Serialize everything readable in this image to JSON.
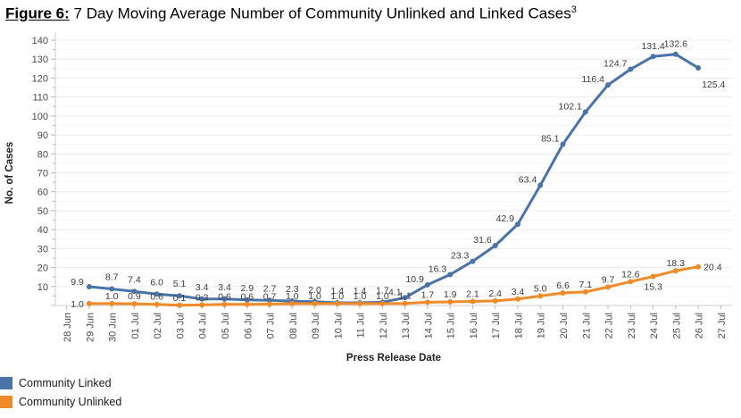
{
  "title": {
    "prefix": "Figure 6:",
    "text": " 7 Day Moving Average Number of Community Unlinked and Linked Cases",
    "superscript": "3"
  },
  "chart_data": {
    "type": "line",
    "title": "Figure 6: 7 Day Moving Average Number of Community Unlinked and Linked Cases",
    "xlabel": "Press Release Date",
    "ylabel": "No. of Cases",
    "ylim": [
      0,
      140
    ],
    "y_tick_step": 10,
    "y_minor_step": 5,
    "grid": true,
    "legend_position": "bottom-left",
    "categories": [
      "28 Jun",
      "29 Jun",
      "30 Jun",
      "01 Jul",
      "02 Jul",
      "03 Jul",
      "04 Jul",
      "05 Jul",
      "06 Jul",
      "07 Jul",
      "08 Jul",
      "09 Jul",
      "10 Jul",
      "11 Jul",
      "12 Jul",
      "13 Jul",
      "14 Jul",
      "15 Jul",
      "16 Jul",
      "17 Jul",
      "18 Jul",
      "19 Jul",
      "20 Jul",
      "21 Jul",
      "22 Jul",
      "23 Jul",
      "24 Jul",
      "25 Jul",
      "26 Jul",
      "27 Jul"
    ],
    "series": [
      {
        "name": "Community Linked",
        "color": "#4a73a8",
        "values": [
          null,
          9.9,
          8.7,
          7.4,
          6.0,
          5.1,
          3.4,
          3.4,
          2.9,
          2.7,
          2.3,
          2.0,
          1.4,
          1.4,
          1.7,
          4.1,
          10.9,
          16.3,
          23.3,
          31.6,
          42.9,
          63.4,
          85.1,
          102.1,
          116.4,
          124.7,
          131.4,
          132.6,
          125.4,
          null
        ]
      },
      {
        "name": "Community Unlinked",
        "color": "#ef8b28",
        "values": [
          null,
          1.0,
          1.0,
          0.9,
          0.6,
          0.1,
          0.3,
          0.6,
          0.6,
          0.7,
          1.0,
          1.0,
          1.0,
          1.0,
          1.0,
          1.1,
          1.7,
          1.9,
          2.1,
          2.4,
          3.4,
          5.0,
          6.6,
          7.1,
          9.7,
          12.6,
          15.3,
          18.3,
          20.4,
          null
        ]
      }
    ],
    "colors": {
      "grid_major": "#ececec",
      "grid_minor": "#f5f5f5",
      "axis": "#cfcfcf",
      "tick": "#b9b9b9"
    }
  }
}
